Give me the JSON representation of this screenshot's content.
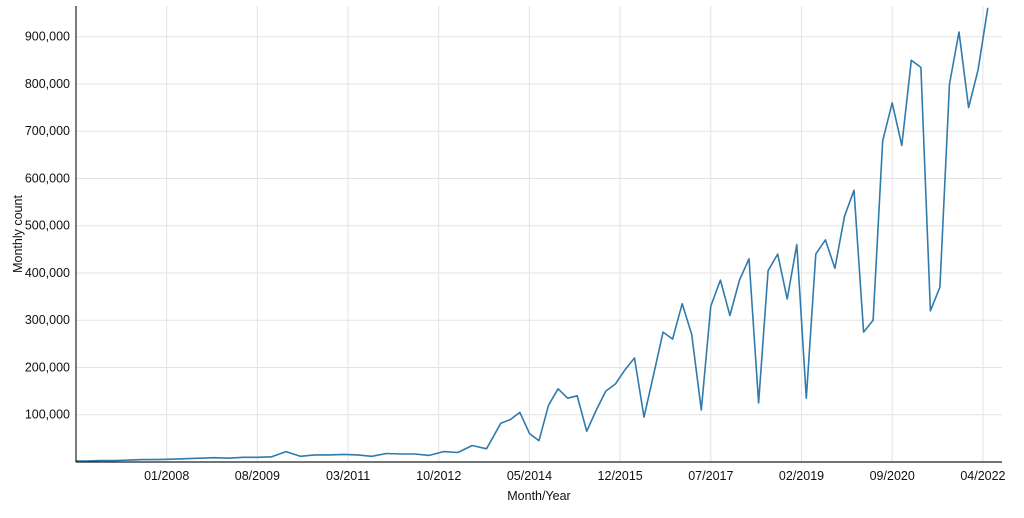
{
  "chart_data": {
    "type": "line",
    "title": "",
    "xlabel": "Month/Year",
    "ylabel": "Monthly count",
    "x_tick_labels": [
      "01/2008",
      "08/2009",
      "03/2011",
      "10/2012",
      "05/2014",
      "12/2015",
      "07/2017",
      "02/2019",
      "09/2020",
      "04/2022"
    ],
    "y_tick_labels": [
      "100,000",
      "200,000",
      "300,000",
      "400,000",
      "500,000",
      "600,000",
      "700,000",
      "800,000",
      "900,000"
    ],
    "y_ticks": [
      100000,
      200000,
      300000,
      400000,
      500000,
      600000,
      700000,
      800000,
      900000
    ],
    "ylim": [
      0,
      965000
    ],
    "xlim": [
      "06/2006",
      "08/2022"
    ],
    "grid": true,
    "legend": "none",
    "line_color": "#2f7bad",
    "series": [
      {
        "x": [
          "06/2006",
          "08/2006",
          "11/2006",
          "02/2007",
          "05/2007",
          "08/2007",
          "11/2007",
          "02/2008",
          "05/2008",
          "08/2008",
          "11/2008",
          "02/2009",
          "05/2009",
          "08/2009",
          "11/2009",
          "02/2010",
          "05/2010",
          "08/2010",
          "11/2010",
          "02/2011",
          "05/2011",
          "08/2011",
          "11/2011",
          "02/2012",
          "05/2012",
          "08/2012",
          "11/2012",
          "02/2013",
          "05/2013",
          "08/2013",
          "11/2013",
          "01/2014",
          "03/2014",
          "05/2014",
          "07/2014",
          "09/2014",
          "11/2014",
          "01/2015",
          "03/2015",
          "05/2015",
          "07/2015",
          "09/2015",
          "11/2015",
          "01/2016",
          "03/2016",
          "05/2016",
          "07/2016",
          "09/2016",
          "11/2016",
          "01/2017",
          "03/2017",
          "05/2017",
          "07/2017",
          "09/2017",
          "11/2017",
          "01/2018",
          "03/2018",
          "05/2018",
          "07/2018",
          "09/2018",
          "11/2018",
          "01/2019",
          "03/2019",
          "05/2019",
          "07/2019",
          "09/2019",
          "11/2019",
          "01/2020",
          "03/2020",
          "05/2020",
          "07/2020",
          "09/2020",
          "11/2020",
          "01/2021",
          "03/2021",
          "05/2021",
          "07/2021",
          "09/2021",
          "11/2021",
          "01/2022",
          "03/2022",
          "05/2022"
        ],
        "values": [
          2000,
          2000,
          3000,
          3000,
          4000,
          5000,
          5000,
          6000,
          7000,
          8000,
          9000,
          8000,
          10000,
          10000,
          11000,
          22000,
          12000,
          15000,
          15000,
          16000,
          15000,
          12000,
          18000,
          17000,
          17000,
          14000,
          22000,
          20000,
          35000,
          28000,
          82000,
          90000,
          105000,
          60000,
          45000,
          120000,
          155000,
          135000,
          140000,
          65000,
          110000,
          150000,
          165000,
          195000,
          220000,
          95000,
          185000,
          275000,
          260000,
          335000,
          270000,
          110000,
          330000,
          385000,
          310000,
          385000,
          430000,
          125000,
          405000,
          440000,
          345000,
          460000,
          135000,
          440000,
          470000,
          410000,
          520000,
          575000,
          275000,
          300000,
          680000,
          760000,
          670000,
          850000,
          835000,
          320000,
          370000,
          800000,
          910000,
          750000,
          830000,
          960000
        ]
      }
    ]
  }
}
